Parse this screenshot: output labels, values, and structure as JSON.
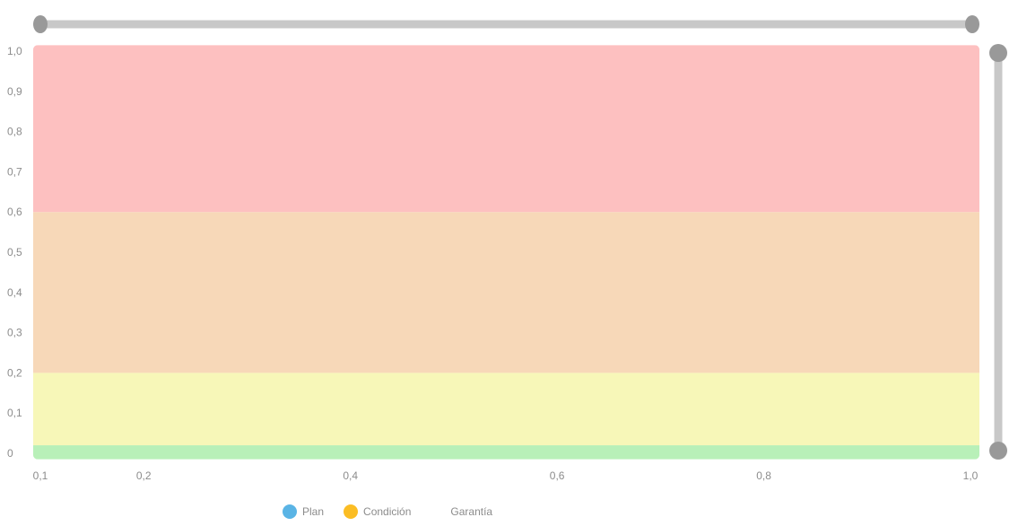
{
  "colors": {
    "slider_track": "#c8c8c8",
    "slider_handle": "#999999",
    "axis_text": "#8c8c8c"
  },
  "chart_data": {
    "type": "area",
    "title": "",
    "xlabel": "",
    "ylabel": "",
    "xlim": [
      0.1,
      1.0
    ],
    "ylim": [
      0,
      1.0
    ],
    "x_ticks": [
      {
        "value": 0.1,
        "label": "0,1"
      },
      {
        "value": 0.2,
        "label": "0,2"
      },
      {
        "value": 0.4,
        "label": "0,4"
      },
      {
        "value": 0.6,
        "label": "0,6"
      },
      {
        "value": 0.8,
        "label": "0,8"
      },
      {
        "value": 1.0,
        "label": "1,0"
      }
    ],
    "y_ticks": [
      {
        "value": 0,
        "label": "0"
      },
      {
        "value": 0.1,
        "label": "0,1"
      },
      {
        "value": 0.2,
        "label": "0,2"
      },
      {
        "value": 0.3,
        "label": "0,3"
      },
      {
        "value": 0.4,
        "label": "0,4"
      },
      {
        "value": 0.5,
        "label": "0,5"
      },
      {
        "value": 0.6,
        "label": "0,6"
      },
      {
        "value": 0.7,
        "label": "0,7"
      },
      {
        "value": 0.8,
        "label": "0,8"
      },
      {
        "value": 0.9,
        "label": "0,9"
      },
      {
        "value": 1.0,
        "label": "1,0"
      }
    ],
    "bands": [
      {
        "y0": -0.015,
        "y1": 0.02,
        "color": "#b8f0b8"
      },
      {
        "y0": 0.02,
        "y1": 0.2,
        "color": "#f7f7b8"
      },
      {
        "y0": 0.2,
        "y1": 0.6,
        "color": "#f7d8b8"
      },
      {
        "y0": 0.6,
        "y1": 1.015,
        "color": "#fdc0c0"
      }
    ],
    "legend": [
      {
        "label": "Plan",
        "color": "#5ab4e5",
        "icon": "circle-icon"
      },
      {
        "label": "Condición",
        "color": "#fbbd24",
        "icon": "circle-icon"
      },
      {
        "label": "Garantía",
        "color": "",
        "icon": ""
      }
    ],
    "legend_position": "bottom",
    "grid": false,
    "x_range_slider": [
      0.1,
      1.0
    ],
    "y_range_slider": [
      0,
      1.0
    ]
  }
}
